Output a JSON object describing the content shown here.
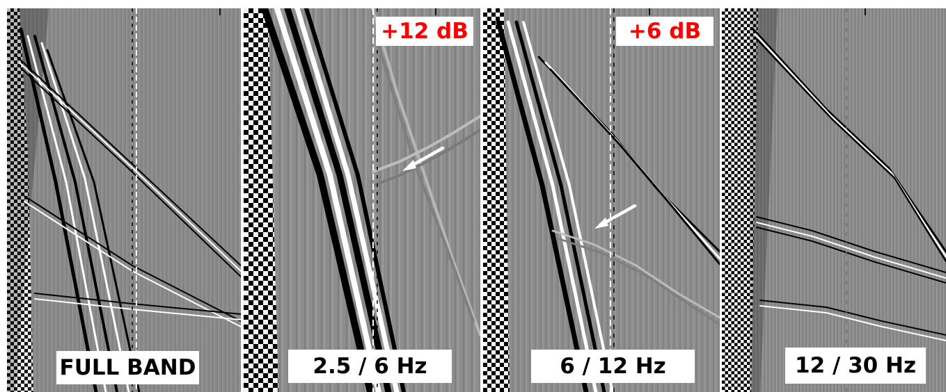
{
  "panels": [
    {
      "id": "full-band",
      "label": "FULL BAND",
      "gain": ""
    },
    {
      "id": "band-2p5-6",
      "label": "2.5 / 6 Hz",
      "gain": "+12 dB"
    },
    {
      "id": "band-6-12",
      "label": "6 / 12 Hz",
      "gain": "+6 dB"
    },
    {
      "id": "band-12-30",
      "label": "12 / 30 Hz",
      "gain": ""
    }
  ],
  "colors": {
    "background": "#ffffff",
    "panel_gray": "#8a8a8a",
    "trace_black": "#000000",
    "trace_white": "#ffffff",
    "label_text": "#000000",
    "gain_text": "#ff0000",
    "arrow": "#ffffff"
  },
  "annotations": [
    {
      "panel": "band-2p5-6",
      "type": "arrow",
      "icon": "arrow-icon"
    },
    {
      "panel": "band-6-12",
      "type": "arrow",
      "icon": "arrow-icon"
    }
  ]
}
